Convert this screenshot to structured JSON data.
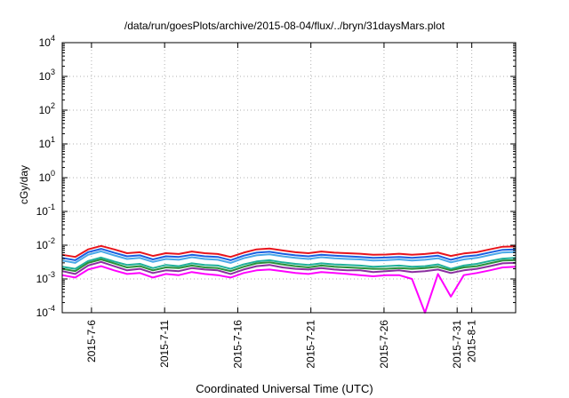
{
  "chart_data": {
    "type": "line",
    "title": "/data/run/goesPlots/archive/2015-08-04/flux/../bryn/31daysMars.plot",
    "xlabel": "Coordinated Universal Time (UTC)",
    "ylabel": "cGy/day",
    "yscale": "log",
    "ylim": [
      0.0001,
      10000
    ],
    "xlim": [
      "2015-07-04",
      "2015-08-04"
    ],
    "grid": true,
    "y_ticks": [
      {
        "base": "10",
        "exp": "-4"
      },
      {
        "base": "10",
        "exp": "-3"
      },
      {
        "base": "10",
        "exp": "-2"
      },
      {
        "base": "10",
        "exp": "-1"
      },
      {
        "base": "10",
        "exp": "0"
      },
      {
        "base": "10",
        "exp": "1"
      },
      {
        "base": "10",
        "exp": "2"
      },
      {
        "base": "10",
        "exp": "3"
      },
      {
        "base": "10",
        "exp": "4"
      }
    ],
    "x_ticks": [
      "2015-7-6",
      "2015-7-11",
      "2015-7-16",
      "2015-7-21",
      "2015-7-26",
      "2015-7-31",
      "2015-8-1"
    ],
    "x_tick_dates": [
      "2015-07-06",
      "2015-07-11",
      "2015-07-16",
      "2015-07-21",
      "2015-07-26",
      "2015-07-31",
      "2015-08-01"
    ],
    "series": [
      {
        "color": "#e8141c",
        "values": [
          0.0052,
          0.0045,
          0.0075,
          0.0095,
          0.0075,
          0.0058,
          0.0062,
          0.0048,
          0.0058,
          0.0055,
          0.0065,
          0.0058,
          0.0055,
          0.0045,
          0.006,
          0.0075,
          0.008,
          0.007,
          0.0062,
          0.0058,
          0.0065,
          0.006,
          0.0058,
          0.0056,
          0.0052,
          0.0053,
          0.0056,
          0.0052,
          0.0055,
          0.006,
          0.0048,
          0.0057,
          0.0062,
          0.0075,
          0.009,
          0.0092
        ]
      },
      {
        "color": "#1a5fe0",
        "values": [
          0.0042,
          0.0036,
          0.0062,
          0.0078,
          0.006,
          0.0047,
          0.005,
          0.0038,
          0.0047,
          0.0045,
          0.0052,
          0.0047,
          0.0045,
          0.0036,
          0.0049,
          0.006,
          0.0064,
          0.0056,
          0.005,
          0.0047,
          0.0052,
          0.0049,
          0.0047,
          0.0045,
          0.0042,
          0.0043,
          0.0045,
          0.0042,
          0.0045,
          0.0049,
          0.0037,
          0.0046,
          0.005,
          0.0061,
          0.0073,
          0.0075
        ]
      },
      {
        "color": "#4aa8e8",
        "values": [
          0.0035,
          0.003,
          0.0052,
          0.0066,
          0.005,
          0.0039,
          0.0042,
          0.0032,
          0.0039,
          0.0037,
          0.0044,
          0.0039,
          0.0037,
          0.003,
          0.0041,
          0.005,
          0.0054,
          0.0047,
          0.0042,
          0.0039,
          0.0044,
          0.0041,
          0.0039,
          0.0038,
          0.0035,
          0.0036,
          0.0038,
          0.0035,
          0.0037,
          0.0041,
          0.0031,
          0.0038,
          0.0042,
          0.0051,
          0.0061,
          0.0063
        ]
      },
      {
        "color": "#20b09a",
        "values": [
          0.0023,
          0.002,
          0.0034,
          0.0043,
          0.0033,
          0.0026,
          0.0028,
          0.0021,
          0.0026,
          0.0024,
          0.0029,
          0.0026,
          0.0025,
          0.002,
          0.0027,
          0.0033,
          0.0036,
          0.0031,
          0.0028,
          0.0026,
          0.0029,
          0.0027,
          0.0026,
          0.0025,
          0.0023,
          0.0024,
          0.0025,
          0.0023,
          0.0024,
          0.0027,
          0.002,
          0.0025,
          0.0028,
          0.0034,
          0.004,
          0.0042
        ]
      },
      {
        "color": "#2a8f3a",
        "values": [
          0.002,
          0.0017,
          0.003,
          0.0038,
          0.0029,
          0.0022,
          0.0024,
          0.0018,
          0.0022,
          0.0021,
          0.0025,
          0.0022,
          0.0021,
          0.0017,
          0.0023,
          0.0029,
          0.0031,
          0.0027,
          0.0024,
          0.0022,
          0.0025,
          0.0023,
          0.0022,
          0.0021,
          0.002,
          0.002,
          0.0021,
          0.002,
          0.0021,
          0.0023,
          0.0018,
          0.0022,
          0.0024,
          0.0029,
          0.0035,
          0.0036
        ]
      },
      {
        "color": "#8b2fa0",
        "values": [
          0.0017,
          0.0014,
          0.0025,
          0.0032,
          0.0024,
          0.0018,
          0.002,
          0.0015,
          0.0018,
          0.0017,
          0.0021,
          0.0019,
          0.0018,
          0.0014,
          0.0019,
          0.0024,
          0.0026,
          0.0022,
          0.002,
          0.0019,
          0.0021,
          0.0019,
          0.0018,
          0.0018,
          0.0016,
          0.0017,
          0.0018,
          0.0016,
          0.0017,
          0.0019,
          0.0015,
          0.0018,
          0.002,
          0.0024,
          0.0029,
          0.003
        ]
      },
      {
        "color": "#ff00ff",
        "values": [
          0.0013,
          0.0011,
          0.0019,
          0.0024,
          0.0018,
          0.0014,
          0.0015,
          0.0011,
          0.0014,
          0.0013,
          0.0016,
          0.0014,
          0.0013,
          0.0011,
          0.0015,
          0.0018,
          0.0019,
          0.0017,
          0.0015,
          0.0014,
          0.0016,
          0.0015,
          0.0014,
          0.0013,
          0.0012,
          0.0013,
          0.0013,
          0.001,
          0.0001,
          0.0014,
          0.0003,
          0.0013,
          0.0015,
          0.0018,
          0.0022,
          0.0023
        ]
      }
    ]
  }
}
